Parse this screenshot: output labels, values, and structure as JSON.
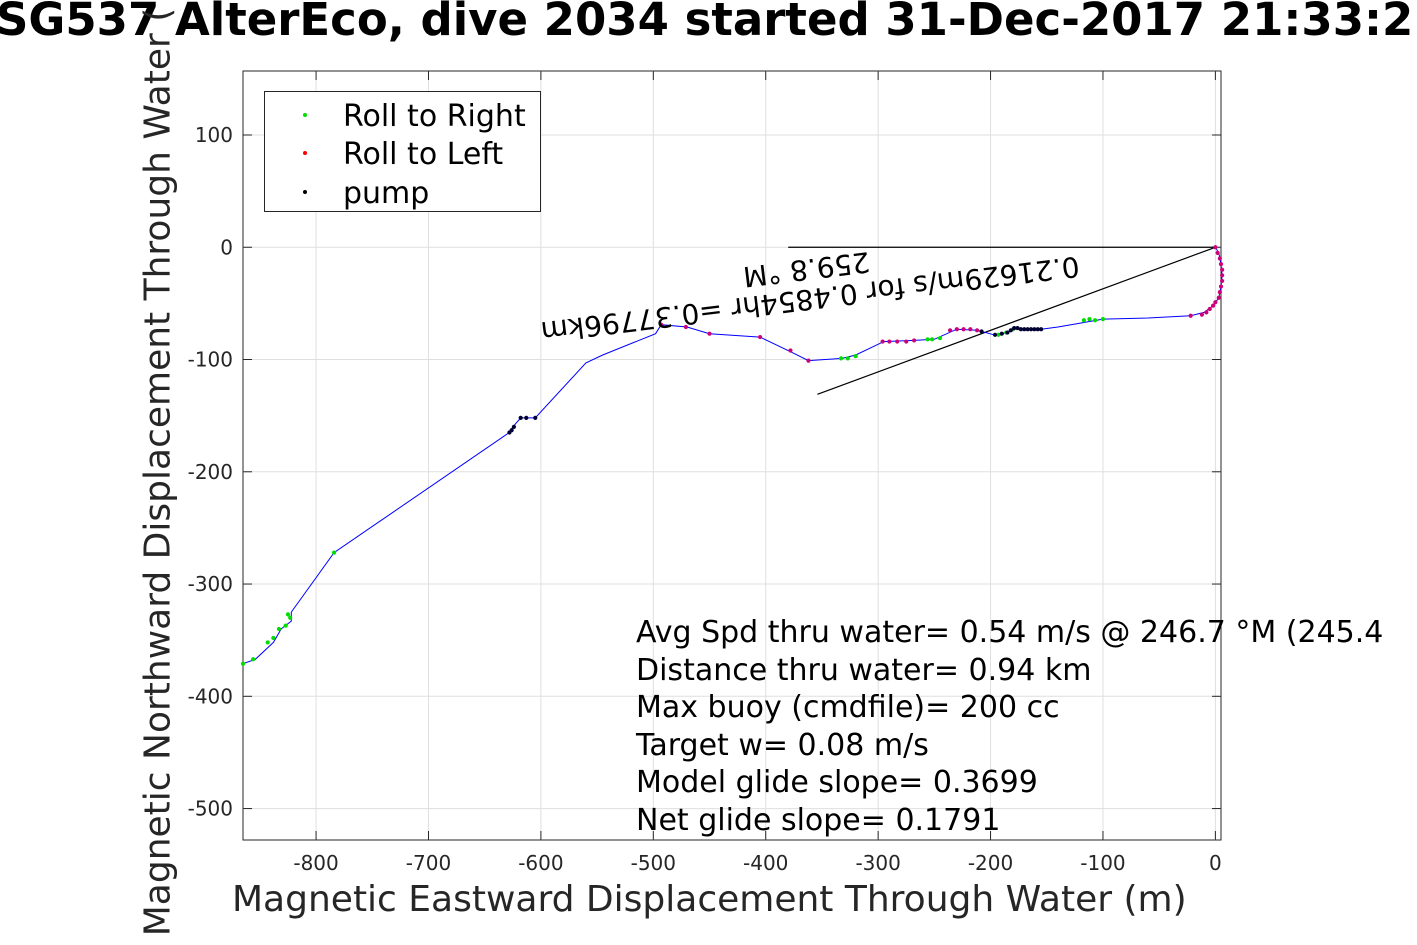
{
  "chart_data": {
    "type": "line",
    "title": "SG537 AlterEco, dive 2034 started 31-Dec-2017 21:33:2",
    "xlabel": "Magnetic Eastward Displacement Through Water (m)",
    "ylabel": "Magnetic Northward Displacement Through Water (",
    "xlim": [
      -865,
      5
    ],
    "ylim": [
      -528,
      157
    ],
    "xticks": [
      -800,
      -700,
      -600,
      -500,
      -400,
      -300,
      -200,
      -100,
      0
    ],
    "xtick_labels": [
      "-800",
      "-700",
      "-600",
      "-500",
      "-400",
      "-300",
      "-200",
      "-100",
      "0"
    ],
    "yticks": [
      -500,
      -400,
      -300,
      -200,
      -100,
      0,
      100
    ],
    "ytick_labels": [
      "-500",
      "-400",
      "-300",
      "-200",
      "-100",
      "0",
      "100"
    ],
    "grid": true,
    "legend_position": "top-left",
    "legend": [
      {
        "label": "Roll to Right",
        "color": "#00dd00"
      },
      {
        "label": "Roll to Left",
        "color": "#ff0000"
      },
      {
        "label": "pump",
        "color": "#000000"
      }
    ],
    "track_color": "#0000ff",
    "track": [
      [
        0,
        0
      ],
      [
        3,
        -5
      ],
      [
        5,
        -15
      ],
      [
        6,
        -25
      ],
      [
        5,
        -35
      ],
      [
        3,
        -45
      ],
      [
        -2,
        -52
      ],
      [
        -10,
        -58
      ],
      [
        -22,
        -61
      ],
      [
        -60,
        -63
      ],
      [
        -100,
        -64
      ],
      [
        -117,
        -67
      ],
      [
        -140,
        -71
      ],
      [
        -155,
        -73
      ],
      [
        -168,
        -73
      ],
      [
        -178,
        -72
      ],
      [
        -185,
        -76
      ],
      [
        -197,
        -78
      ],
      [
        -212,
        -74
      ],
      [
        -230,
        -73
      ],
      [
        -250,
        -82
      ],
      [
        -268,
        -83
      ],
      [
        -295,
        -84
      ],
      [
        -320,
        -96
      ],
      [
        -332,
        -99
      ],
      [
        -362,
        -101
      ],
      [
        -378,
        -93
      ],
      [
        -405,
        -80
      ],
      [
        -450,
        -77
      ],
      [
        -470,
        -71
      ],
      [
        -493,
        -69
      ],
      [
        -498,
        -77
      ],
      [
        -545,
        -96
      ],
      [
        -560,
        -103
      ],
      [
        -605,
        -152
      ],
      [
        -618,
        -152
      ],
      [
        -625,
        -160
      ],
      [
        -628,
        -165
      ],
      [
        -784,
        -272
      ],
      [
        -822,
        -325
      ],
      [
        -822,
        -333
      ],
      [
        -831,
        -340
      ],
      [
        -838,
        -352
      ],
      [
        -854,
        -367
      ],
      [
        -865,
        -371
      ]
    ],
    "roll_right_points": [
      [
        -100,
        -64
      ],
      [
        -107,
        -65
      ],
      [
        -112,
        -64
      ],
      [
        -117,
        -65
      ],
      [
        -180,
        -73
      ],
      [
        -186,
        -76
      ],
      [
        -193,
        -78
      ],
      [
        -245,
        -81
      ],
      [
        -252,
        -82
      ],
      [
        -256,
        -82
      ],
      [
        -320,
        -97
      ],
      [
        -327,
        -99
      ],
      [
        -333,
        -99
      ],
      [
        -825,
        -327
      ],
      [
        -823,
        -330
      ],
      [
        -827,
        -337
      ],
      [
        -833,
        -340
      ],
      [
        -838,
        -348
      ],
      [
        -843,
        -352
      ],
      [
        -856,
        -367
      ],
      [
        -865,
        -371
      ],
      [
        -784,
        -272
      ]
    ],
    "roll_left_points": [
      [
        0,
        0
      ],
      [
        2,
        -5
      ],
      [
        4,
        -10
      ],
      [
        5,
        -15
      ],
      [
        6,
        -20
      ],
      [
        6,
        -25
      ],
      [
        6,
        -30
      ],
      [
        5,
        -35
      ],
      [
        4,
        -40
      ],
      [
        3,
        -45
      ],
      [
        0,
        -49
      ],
      [
        -2,
        -52
      ],
      [
        -5,
        -55
      ],
      [
        -8,
        -58
      ],
      [
        -12,
        -60
      ],
      [
        -22,
        -61
      ],
      [
        -212,
        -74
      ],
      [
        -218,
        -73
      ],
      [
        -224,
        -73
      ],
      [
        -230,
        -73
      ],
      [
        -236,
        -74
      ],
      [
        -268,
        -83
      ],
      [
        -275,
        -84
      ],
      [
        -283,
        -84
      ],
      [
        -290,
        -84
      ],
      [
        -296,
        -84
      ],
      [
        -362,
        -101
      ],
      [
        -378,
        -92
      ],
      [
        -405,
        -80
      ],
      [
        -450,
        -77
      ],
      [
        -471,
        -71
      ],
      [
        -493,
        -69
      ]
    ],
    "pump_points": [
      [
        -155,
        -73
      ],
      [
        -158,
        -73
      ],
      [
        -161,
        -73
      ],
      [
        -164,
        -73
      ],
      [
        -167,
        -73
      ],
      [
        -170,
        -73
      ],
      [
        -173,
        -73
      ],
      [
        -176,
        -72
      ],
      [
        -179,
        -72
      ],
      [
        -182,
        -74
      ],
      [
        -185,
        -76
      ],
      [
        -190,
        -77
      ],
      [
        -196,
        -78
      ],
      [
        -208,
        -75
      ],
      [
        -605,
        -152
      ],
      [
        -613,
        -152
      ],
      [
        -618,
        -152
      ],
      [
        -624,
        -160
      ],
      [
        -626,
        -163
      ],
      [
        -628,
        -165
      ]
    ],
    "reference_lines": [
      {
        "from": [
          -380,
          0
        ],
        "to": [
          0,
          0
        ]
      },
      {
        "from": [
          -354,
          -131
        ],
        "to": [
          0,
          0
        ]
      }
    ],
    "annotation": {
      "lines": [
        "0.21629m/s for 0.4854hr =0.37796km",
        "259.8 °M"
      ],
      "x": -360,
      "y": -50,
      "angle_deg": 173,
      "color": "#000000"
    },
    "stats": [
      "Avg Spd thru water=  0.54 m/s @ 246.7 °M (245.4",
      "Distance thru water=  0.94 km",
      "Max buoy (cmdfile)= 200 cc",
      "Target w= 0.08 m/s",
      "Model glide slope= 0.3699",
      "Net glide slope= 0.1791"
    ]
  }
}
